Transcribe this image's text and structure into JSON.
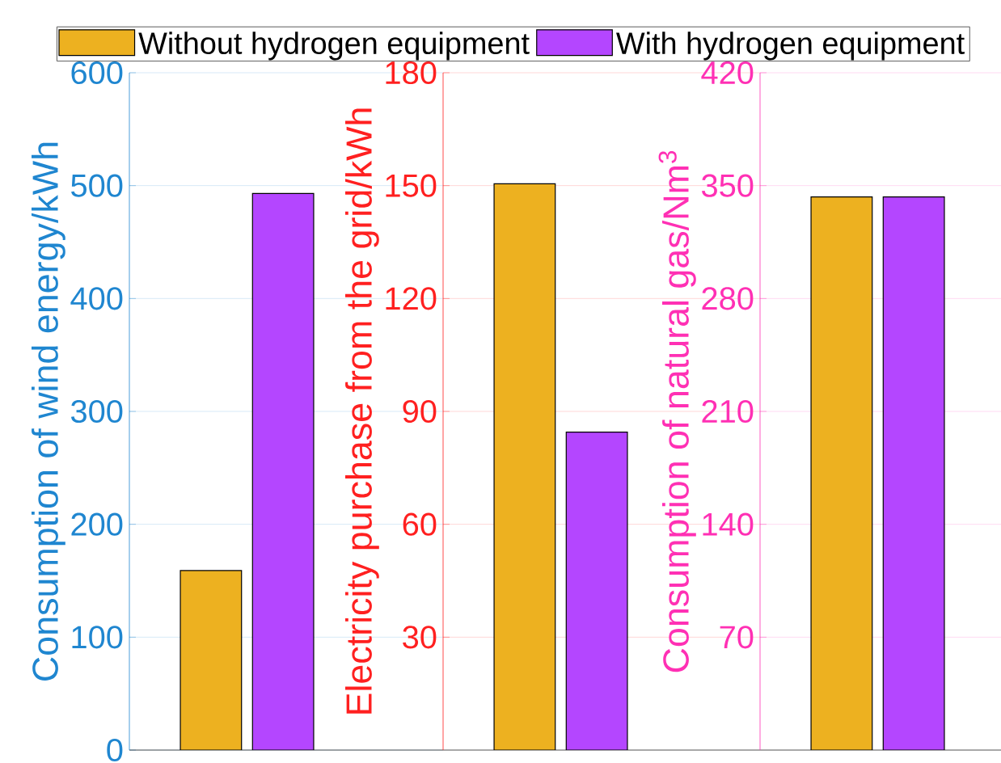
{
  "chart_data": [
    {
      "type": "bar",
      "categories": [
        null
      ],
      "ylabel": "Consumption of wind energy/kWh",
      "ylim": [
        0,
        600
      ],
      "yticks": [
        0,
        100,
        200,
        300,
        400,
        500,
        600
      ],
      "grid": "y",
      "tick_labels": "y",
      "legend": "top",
      "series": [
        {
          "name": "Without hydrogen equipment",
          "color": "#edb120",
          "values": [
            159
          ]
        },
        {
          "name": "With hydrogen equipment",
          "color": "#b446ff",
          "values": [
            493
          ]
        }
      ]
    },
    {
      "type": "bar",
      "categories": [
        null
      ],
      "ylabel": "Electricity purchase from the grid/kWh",
      "ylim": [
        0,
        180
      ],
      "yticks": [
        30,
        60,
        90,
        120,
        150,
        180
      ],
      "grid": "y",
      "tick_labels": "y",
      "series": [
        {
          "color": "#edb120",
          "values": [
            150.5
          ]
        },
        {
          "color": "#b446ff",
          "values": [
            84.5
          ]
        }
      ]
    },
    {
      "type": "bar",
      "categories": [
        null
      ],
      "ylabel": "Consumption of natural gas/Nm$^{3}$",
      "ylim": [
        0,
        420
      ],
      "yticks": [
        70,
        140,
        210,
        280,
        350,
        420
      ],
      "grid": "y",
      "tick_labels": "y",
      "series": [
        {
          "color": "#edb120",
          "values": [
            343
          ]
        },
        {
          "color": "#b446ff",
          "values": [
            343
          ]
        }
      ]
    }
  ]
}
